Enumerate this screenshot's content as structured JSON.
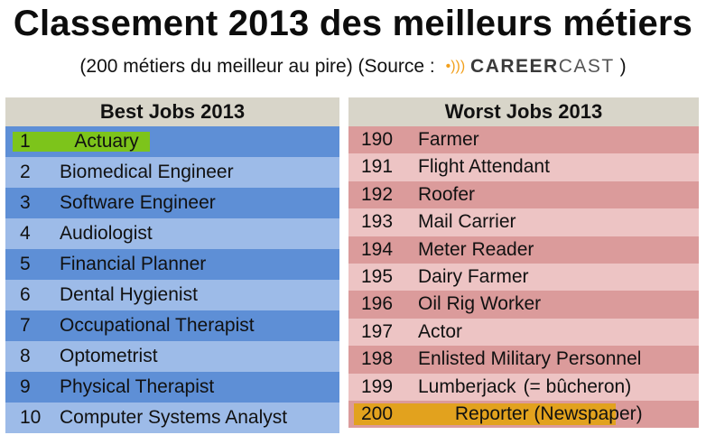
{
  "title": "Classement 2013 des meilleurs métiers",
  "subtitle": "(200 métiers du meilleur au pire) (Source :",
  "subtitle_close": ")",
  "brand": {
    "part1": "CAREER",
    "part2": "CAST",
    "icon": "signal-waves-icon"
  },
  "best": {
    "header": "Best Jobs 2013",
    "rows": [
      {
        "rank": "1",
        "job": "Actuary"
      },
      {
        "rank": "2",
        "job": "Biomedical Engineer"
      },
      {
        "rank": "3",
        "job": "Software Engineer"
      },
      {
        "rank": "4",
        "job": "Audiologist"
      },
      {
        "rank": "5",
        "job": "Financial Planner"
      },
      {
        "rank": "6",
        "job": "Dental Hygienist"
      },
      {
        "rank": "7",
        "job": "Occupational Therapist"
      },
      {
        "rank": "8",
        "job": "Optometrist"
      },
      {
        "rank": "9",
        "job": "Physical Therapist"
      },
      {
        "rank": "10",
        "job": "Computer Systems Analyst"
      }
    ]
  },
  "worst": {
    "header": "Worst Jobs 2013",
    "rows": [
      {
        "rank": "190",
        "job": "Farmer"
      },
      {
        "rank": "191",
        "job": "Flight Attendant"
      },
      {
        "rank": "192",
        "job": "Roofer"
      },
      {
        "rank": "193",
        "job": "Mail Carrier"
      },
      {
        "rank": "194",
        "job": "Meter Reader"
      },
      {
        "rank": "195",
        "job": "Dairy Farmer"
      },
      {
        "rank": "196",
        "job": "Oil Rig Worker"
      },
      {
        "rank": "197",
        "job": "Actor"
      },
      {
        "rank": "198",
        "job": "Enlisted Military Personnel"
      },
      {
        "rank": "199",
        "job": "Lumberjack",
        "note": "(= bûcheron)"
      },
      {
        "rank": "200",
        "job": "Reporter (Newspaper)"
      }
    ]
  },
  "colors": {
    "best_dark": "#5e8fd6",
    "best_light": "#9dbbe8",
    "worst_dark": "#db9b9b",
    "worst_light": "#edc4c4",
    "highlight_best": "#7dc41b",
    "highlight_worst": "#e2a21e",
    "header_bg": "#d8d5c9"
  }
}
